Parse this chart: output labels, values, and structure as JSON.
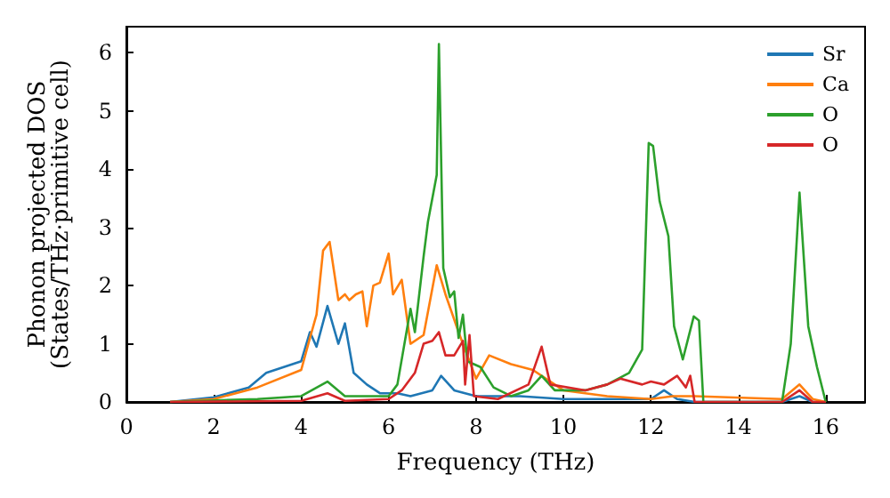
{
  "chart_data": {
    "type": "line",
    "xlabel": "Frequency (THz)",
    "ylabel": "Phonon projected DOS\n(States/THz·primitive cell)",
    "xlim": [
      0,
      16.9
    ],
    "xticks": [
      0,
      2,
      4,
      6,
      8,
      10,
      12,
      14,
      16
    ],
    "ylim": [
      0,
      6.45
    ],
    "yticks": [
      0,
      1,
      2,
      3,
      4,
      5,
      6
    ],
    "grid": false,
    "legend": "top right",
    "marker": "none",
    "line_style": "solid",
    "series": [
      {
        "name": "Sr",
        "color": "#1f77b4",
        "x": [
          1,
          2,
          2.8,
          3.2,
          4.0,
          4.2,
          4.35,
          4.6,
          4.85,
          5.0,
          5.2,
          5.5,
          5.8,
          6.2,
          6.5,
          7.0,
          7.2,
          7.5,
          8,
          9,
          10,
          11,
          12,
          12.3,
          12.6,
          13,
          15,
          15.4,
          15.7,
          16
        ],
        "values": [
          0,
          0.08,
          0.25,
          0.5,
          0.7,
          1.2,
          0.95,
          1.65,
          1.0,
          1.35,
          0.5,
          0.3,
          0.15,
          0.15,
          0.1,
          0.2,
          0.45,
          0.2,
          0.1,
          0.1,
          0.05,
          0.05,
          0.05,
          0.2,
          0.05,
          0,
          0,
          0.1,
          0,
          0
        ]
      },
      {
        "name": "Ca",
        "color": "#ff7f0e",
        "x": [
          1,
          2,
          3,
          4,
          4.2,
          4.35,
          4.5,
          4.65,
          4.85,
          5.0,
          5.1,
          5.25,
          5.4,
          5.5,
          5.65,
          5.8,
          6.0,
          6.1,
          6.3,
          6.5,
          6.8,
          7.1,
          7.3,
          7.6,
          7.8,
          8.0,
          8.3,
          8.8,
          9.3,
          9.6,
          10,
          11,
          12,
          12.5,
          13,
          15,
          15.4,
          15.7,
          16
        ],
        "values": [
          0,
          0.05,
          0.25,
          0.55,
          1.1,
          1.5,
          2.6,
          2.75,
          1.75,
          1.85,
          1.75,
          1.85,
          1.9,
          1.3,
          2.0,
          2.05,
          2.55,
          1.85,
          2.1,
          1.0,
          1.15,
          2.35,
          1.85,
          1.2,
          0.8,
          0.4,
          0.8,
          0.65,
          0.55,
          0.4,
          0.2,
          0.1,
          0.05,
          0.1,
          0.1,
          0.05,
          0.3,
          0.05,
          0
        ]
      },
      {
        "name": "O",
        "color": "#2ca02c",
        "x": [
          1,
          3,
          4,
          4.6,
          5,
          6,
          6.2,
          6.5,
          6.6,
          6.8,
          6.9,
          7.1,
          7.15,
          7.25,
          7.4,
          7.5,
          7.6,
          7.7,
          7.8,
          8.1,
          8.4,
          8.8,
          9.2,
          9.5,
          9.8,
          10.5,
          11.0,
          11.5,
          11.8,
          11.95,
          12.05,
          12.2,
          12.4,
          12.53,
          12.73,
          12.98,
          13.1,
          13.2,
          15,
          15.2,
          15.4,
          15.6,
          15.8,
          16
        ],
        "values": [
          0,
          0.05,
          0.1,
          0.35,
          0.1,
          0.1,
          0.3,
          1.6,
          1.2,
          2.5,
          3.1,
          3.9,
          6.15,
          2.3,
          1.8,
          1.9,
          1.1,
          1.5,
          0.7,
          0.6,
          0.25,
          0.1,
          0.2,
          0.45,
          0.2,
          0.2,
          0.3,
          0.5,
          0.9,
          4.45,
          4.4,
          3.45,
          2.85,
          1.3,
          0.73,
          1.47,
          1.4,
          0,
          0,
          1.0,
          3.6,
          1.3,
          0.6,
          0
        ]
      },
      {
        "name": "O",
        "color": "#d62728",
        "x": [
          1,
          4,
          4.6,
          5,
          6,
          6.3,
          6.6,
          6.8,
          7.0,
          7.15,
          7.3,
          7.5,
          7.7,
          7.75,
          7.85,
          7.95,
          8.5,
          9.2,
          9.5,
          9.7,
          10.5,
          11.0,
          11.3,
          11.8,
          12.0,
          12.3,
          12.6,
          12.8,
          12.9,
          13.0,
          15,
          15.4,
          15.7,
          16
        ],
        "values": [
          0,
          0.02,
          0.15,
          0.02,
          0.05,
          0.2,
          0.5,
          1.0,
          1.05,
          1.2,
          0.8,
          0.8,
          1.05,
          0.3,
          1.15,
          0.1,
          0.05,
          0.3,
          0.95,
          0.3,
          0.2,
          0.3,
          0.4,
          0.3,
          0.35,
          0.3,
          0.45,
          0.25,
          0.45,
          0,
          0,
          0.2,
          0,
          0
        ]
      }
    ]
  }
}
